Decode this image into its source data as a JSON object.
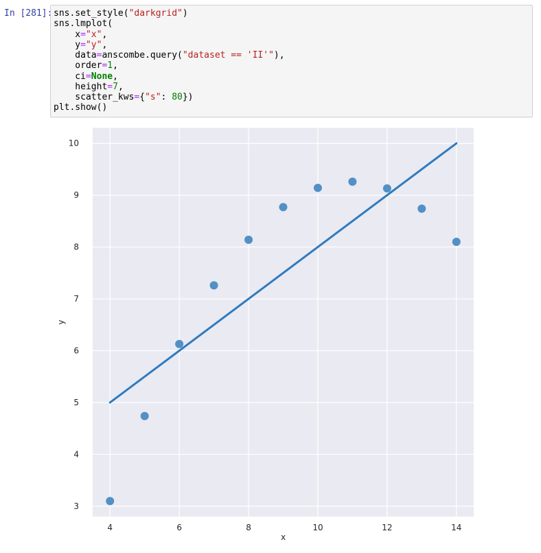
{
  "cell": {
    "prompt": "In [281]:",
    "code_lines": [
      [
        {
          "t": "sns.set_style("
        },
        {
          "t": "\"darkgrid\"",
          "c": "str"
        },
        {
          "t": ")"
        }
      ],
      [
        {
          "t": "sns.lmplot("
        }
      ],
      [
        {
          "t": "    x"
        },
        {
          "t": "=",
          "c": "op"
        },
        {
          "t": "\"x\"",
          "c": "str"
        },
        {
          "t": ","
        }
      ],
      [
        {
          "t": "    y"
        },
        {
          "t": "=",
          "c": "op"
        },
        {
          "t": "\"y\"",
          "c": "str"
        },
        {
          "t": ","
        }
      ],
      [
        {
          "t": "    data"
        },
        {
          "t": "=",
          "c": "op"
        },
        {
          "t": "anscombe.query("
        },
        {
          "t": "\"dataset == 'II'\"",
          "c": "str"
        },
        {
          "t": "),"
        }
      ],
      [
        {
          "t": "    order"
        },
        {
          "t": "=",
          "c": "op"
        },
        {
          "t": "1",
          "c": "num"
        },
        {
          "t": ","
        }
      ],
      [
        {
          "t": "    ci"
        },
        {
          "t": "=",
          "c": "op"
        },
        {
          "t": "None",
          "c": "kw"
        },
        {
          "t": ","
        }
      ],
      [
        {
          "t": "    height"
        },
        {
          "t": "=",
          "c": "op"
        },
        {
          "t": "7",
          "c": "num"
        },
        {
          "t": ","
        }
      ],
      [
        {
          "t": "    scatter_kws"
        },
        {
          "t": "=",
          "c": "op"
        },
        {
          "t": "{"
        },
        {
          "t": "\"s\"",
          "c": "str"
        },
        {
          "t": ": "
        },
        {
          "t": "80",
          "c": "num"
        },
        {
          "t": "})"
        }
      ],
      [
        {
          "t": "plt.show()"
        }
      ]
    ]
  },
  "chart_data": {
    "type": "scatter",
    "title": "",
    "xlabel": "x",
    "ylabel": "y",
    "xlim": [
      3.5,
      14.5
    ],
    "ylim": [
      2.8,
      10.3
    ],
    "xticks": [
      4,
      6,
      8,
      10,
      12,
      14
    ],
    "yticks": [
      3,
      4,
      5,
      6,
      7,
      8,
      9,
      10
    ],
    "grid": true,
    "style": "darkgrid",
    "points": [
      {
        "x": 4,
        "y": 3.1
      },
      {
        "x": 5,
        "y": 4.74
      },
      {
        "x": 6,
        "y": 6.13
      },
      {
        "x": 7,
        "y": 7.26
      },
      {
        "x": 8,
        "y": 8.14
      },
      {
        "x": 9,
        "y": 8.77
      },
      {
        "x": 10,
        "y": 9.14
      },
      {
        "x": 11,
        "y": 9.26
      },
      {
        "x": 12,
        "y": 9.13
      },
      {
        "x": 13,
        "y": 8.74
      },
      {
        "x": 14,
        "y": 8.1
      }
    ],
    "fit_line": {
      "x": [
        4,
        14
      ],
      "y": [
        5.0,
        10.0
      ]
    },
    "colors": {
      "background": "#eaeaf2",
      "grid": "#ffffff",
      "points": "#4a8bc2",
      "line": "#2e7bbf",
      "tick_text": "#262626"
    }
  }
}
